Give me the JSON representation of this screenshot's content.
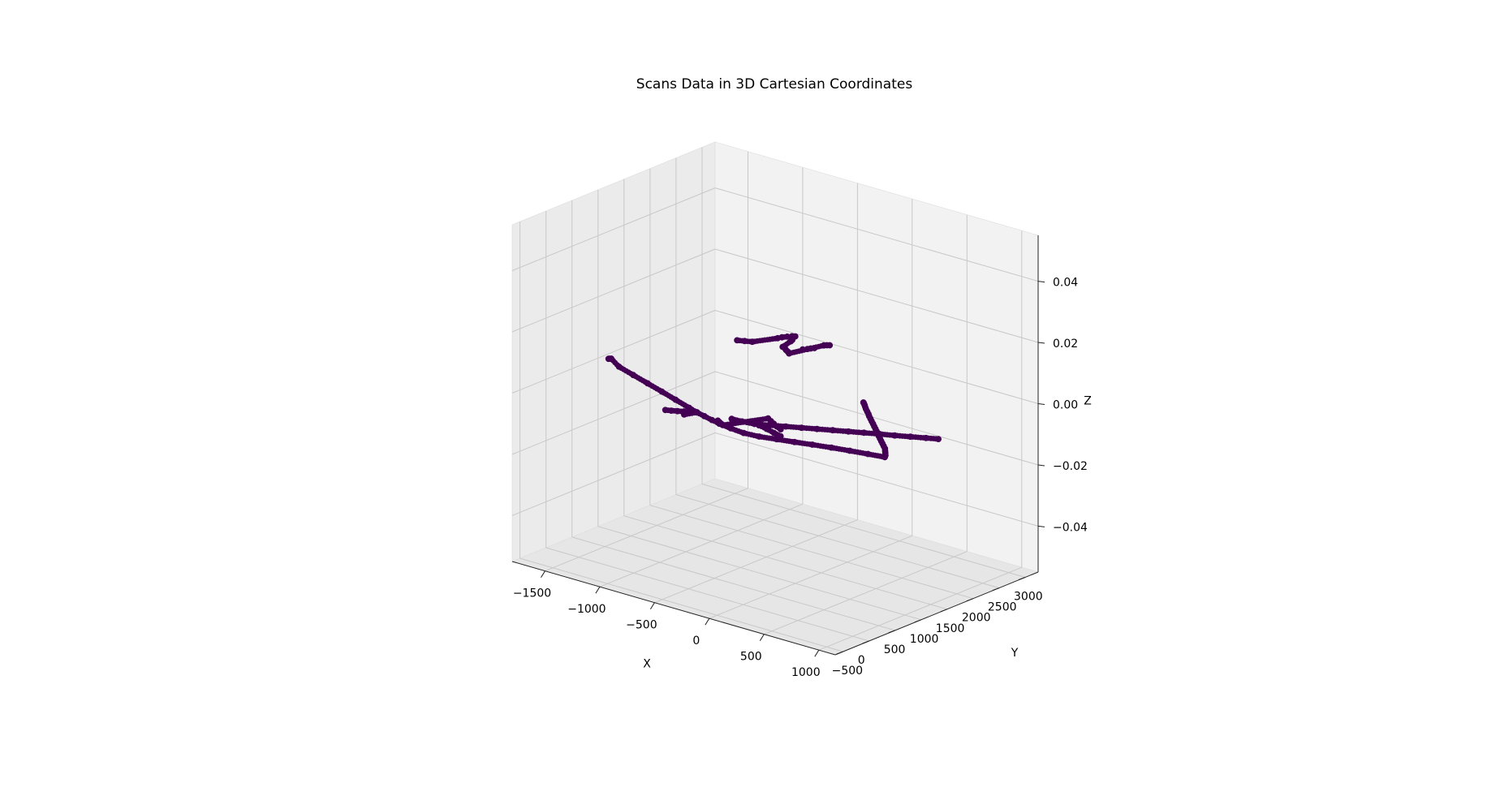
{
  "chart_data": {
    "type": "scatter",
    "title": "Scans Data in 3D Cartesian Coordinates",
    "xlabel": "X",
    "ylabel": "Y",
    "zlabel": "Z",
    "xlim": [
      -1800,
      1150
    ],
    "ylim": [
      -650,
      3250
    ],
    "zlim": [
      -0.055,
      0.055
    ],
    "xticks": [
      -1500,
      -1000,
      -500,
      0,
      500,
      1000
    ],
    "yticks": [
      -500,
      0,
      500,
      1000,
      1500,
      2000,
      2500,
      3000
    ],
    "zticks": [
      -0.04,
      -0.02,
      0.0,
      0.02,
      0.04
    ],
    "xtick_labels": [
      "−1500",
      "−1000",
      "−500",
      "0",
      "500",
      "1000"
    ],
    "ytick_labels": [
      "−500",
      "0",
      "500",
      "1000",
      "1500",
      "2000",
      "2500",
      "3000"
    ],
    "ztick_labels": [
      "−0.04",
      "−0.02",
      "0.00",
      "0.02",
      "0.04"
    ],
    "grid": true,
    "marker_color": "#440154",
    "pane_colors": [
      "#f2f2f2",
      "#ebebeb",
      "#e6e6e6"
    ],
    "grid_color": "#c8c8c8",
    "z_value": 0,
    "series": [
      {
        "points": [
          [
            -1735,
            1065
          ],
          [
            -1730,
            1075
          ],
          [
            -1726,
            1083
          ],
          [
            -1722,
            1090
          ],
          [
            -1575,
            930
          ],
          [
            -1390,
            815
          ],
          [
            -1205,
            700
          ],
          [
            -1020,
            585
          ],
          [
            -840,
            470
          ],
          [
            -660,
            355
          ],
          [
            -560,
            292
          ],
          [
            -560,
            292
          ],
          [
            -600,
            250
          ],
          [
            -640,
            210
          ],
          [
            -680,
            170
          ],
          [
            -720,
            135
          ],
          [
            -760,
            105
          ],
          [
            -640,
            210
          ],
          [
            -620,
            170
          ],
          [
            -600,
            130
          ],
          [
            -560,
            292
          ],
          [
            -470,
            245
          ],
          [
            -380,
            200
          ],
          [
            -290,
            160
          ],
          [
            -295,
            160
          ],
          [
            -170,
            120
          ],
          [
            -40,
            95
          ],
          [
            90,
            120
          ],
          [
            220,
            185
          ],
          [
            350,
            250
          ],
          [
            480,
            320
          ],
          [
            620,
            390
          ],
          [
            760,
            450
          ],
          [
            900,
            505
          ],
          [
            1030,
            555
          ],
          [
            1030,
            555
          ],
          [
            1010,
            610
          ],
          [
            980,
            670
          ],
          [
            950,
            730
          ],
          [
            920,
            790
          ],
          [
            880,
            850
          ],
          [
            840,
            910
          ],
          [
            800,
            970
          ],
          [
            760,
            1030
          ],
          [
            720,
            1090
          ],
          [
            690,
            1140
          ],
          [
            650,
            1200
          ],
          [
            610,
            1260
          ],
          [
            570,
            1320
          ],
          [
            530,
            1380
          ],
          [
            490,
            1440
          ],
          [
            450,
            1500
          ],
          [
            410,
            1560
          ],
          [
            380,
            1610
          ],
          [
            340,
            1670
          ],
          [
            300,
            1730
          ],
          [
            270,
            1780
          ],
          [
            240,
            1830
          ],
          [
            215,
            1870
          ],
          [
            200,
            1890
          ],
          [
            -820,
            2870
          ],
          [
            -800,
            2920
          ],
          [
            -790,
            2960
          ],
          [
            -775,
            3000
          ],
          [
            -1290,
            2600
          ],
          [
            -1240,
            2640
          ],
          [
            -1190,
            2680
          ],
          [
            -1100,
            2980
          ],
          [
            -1090,
            3040
          ],
          [
            -1070,
            3100
          ],
          [
            -1050,
            3150
          ],
          [
            -1030,
            3170
          ],
          [
            -1020,
            3100
          ],
          [
            -1000,
            3050
          ],
          [
            -990,
            3000
          ],
          [
            -960,
            2780
          ],
          [
            -930,
            2760
          ],
          [
            -900,
            2720
          ],
          [
            -870,
            2690
          ],
          [
            -840,
            2650
          ],
          [
            -760,
            3150
          ],
          [
            -745,
            3180
          ],
          [
            -730,
            3200
          ],
          [
            -290,
            390
          ],
          [
            -200,
            400
          ],
          [
            -100,
            430
          ],
          [
            0,
            520
          ],
          [
            100,
            610
          ],
          [
            200,
            700
          ],
          [
            300,
            790
          ],
          [
            400,
            880
          ],
          [
            500,
            970
          ],
          [
            600,
            1060
          ],
          [
            700,
            1150
          ],
          [
            800,
            1230
          ],
          [
            900,
            1320
          ],
          [
            1000,
            1410
          ],
          [
            1080,
            1480
          ],
          [
            -150,
            480
          ],
          [
            -60,
            430
          ],
          [
            30,
            390
          ],
          [
            120,
            340
          ],
          [
            200,
            300
          ],
          [
            -340,
            230
          ],
          [
            -310,
            200
          ],
          [
            -280,
            170
          ],
          [
            -255,
            145
          ],
          [
            -100,
            690
          ],
          [
            -50,
            640
          ],
          [
            0,
            590
          ],
          [
            50,
            540
          ],
          [
            110,
            490
          ]
        ]
      }
    ]
  }
}
